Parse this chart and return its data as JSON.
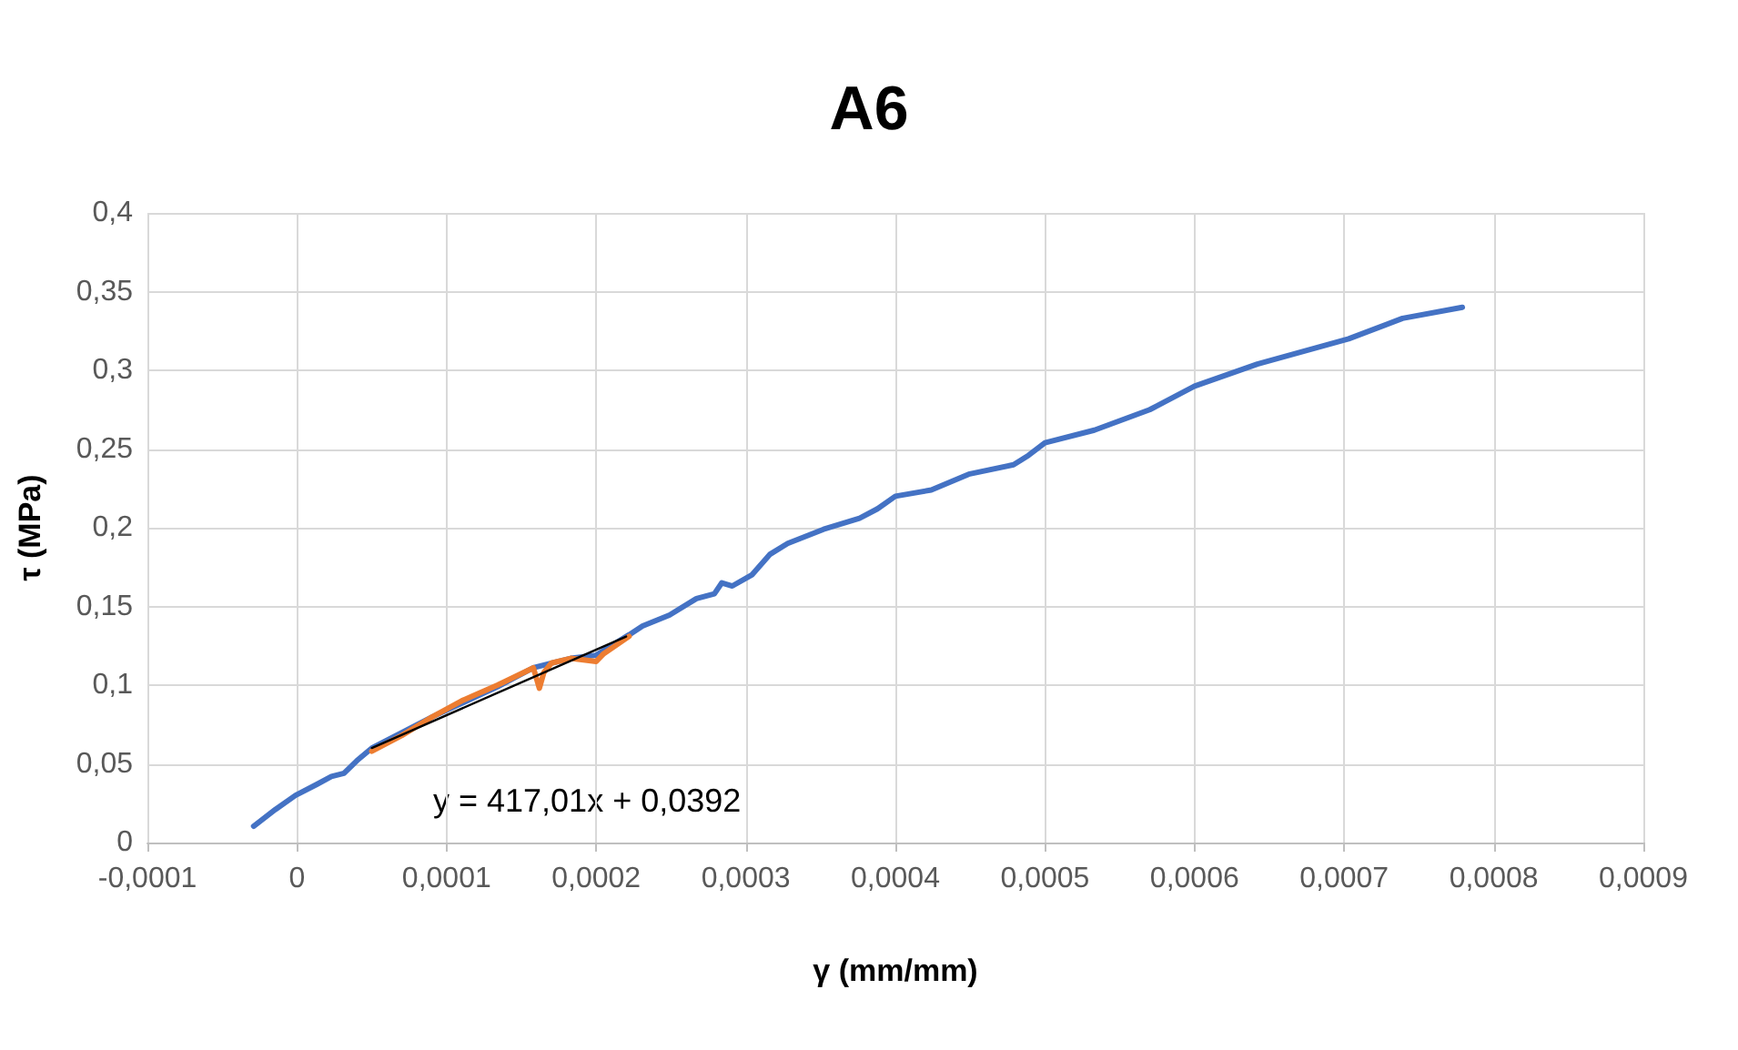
{
  "chart_data": {
    "type": "line",
    "title": "A6",
    "xlabel": "γ (mm/mm)",
    "ylabel": "τ (MPa)",
    "xlim": [
      -0.0001,
      0.0009
    ],
    "xticks": [
      {
        "value": -0.0001,
        "label": "-0,0001"
      },
      0,
      {
        "value": 0.0001,
        "label": "0,0001"
      },
      {
        "value": 0.0002,
        "label": "0,0002"
      },
      {
        "value": 0.0003,
        "label": "0,0003"
      },
      {
        "value": 0.0004,
        "label": "0,0004"
      },
      {
        "value": 0.0005,
        "label": "0,0005"
      },
      {
        "value": 0.0006,
        "label": "0,0006"
      },
      {
        "value": 0.0007,
        "label": "0,0007"
      },
      {
        "value": 0.0008,
        "label": "0,0008"
      },
      {
        "value": 0.0009,
        "label": "0,0009"
      }
    ],
    "ylim": [
      0,
      0.4
    ],
    "yticks": [
      0,
      {
        "value": 0.05,
        "label": "0,05"
      },
      {
        "value": 0.1,
        "label": "0,1"
      },
      {
        "value": 0.15,
        "label": "0,15"
      },
      {
        "value": 0.2,
        "label": "0,2"
      },
      {
        "value": 0.25,
        "label": "0,25"
      },
      {
        "value": 0.3,
        "label": "0,3"
      },
      {
        "value": 0.35,
        "label": "0,35"
      },
      {
        "value": 0.4,
        "label": "0,4"
      }
    ],
    "grid": true,
    "marker": "none",
    "line_style": "solid",
    "annotations": [
      "y = 417,01x + 0,0392"
    ],
    "series": [
      {
        "color": "#4472c4",
        "x": [
          -2.9e-05,
          -1.45e-05,
          -1e-06,
          1.33e-05,
          2.3e-05,
          3.14e-05,
          4e-05,
          5e-05,
          9.07e-05,
          0.000134,
          0.000158,
          0.00017,
          0.000183,
          0.0002,
          0.000222,
          0.000231,
          0.000249,
          0.000267,
          0.000279,
          0.000284,
          0.000291,
          0.000304,
          0.000316,
          0.000328,
          0.000352,
          0.000376,
          0.000388,
          0.0004,
          0.000424,
          0.000449,
          0.000479,
          0.000489,
          0.0005,
          0.000533,
          0.00057,
          0.0006,
          0.000642,
          0.000703,
          0.000739,
          0.000779
        ],
        "values": [
          0.0104,
          0.021,
          0.03,
          0.037,
          0.042,
          0.044,
          0.052,
          0.06,
          0.08,
          0.099,
          0.111,
          0.114,
          0.117,
          0.119,
          0.132,
          0.1376,
          0.1445,
          0.155,
          0.158,
          0.165,
          0.163,
          0.17,
          0.183,
          0.19,
          0.199,
          0.206,
          0.212,
          0.22,
          0.224,
          0.234,
          0.24,
          0.246,
          0.254,
          0.262,
          0.275,
          0.29,
          0.304,
          0.32,
          0.333,
          0.34
        ]
      },
      {
        "color": "#ed7d31",
        "x": [
          5e-05,
          7e-05,
          9.07e-05,
          0.00011,
          0.000134,
          0.000158,
          0.000162,
          0.000165,
          0.00017,
          0.000183,
          0.0002,
          0.000205,
          0.000222
        ],
        "values": [
          0.058,
          0.068,
          0.08,
          0.09,
          0.1,
          0.111,
          0.098,
          0.108,
          0.114,
          0.117,
          0.115,
          0.12,
          0.131
        ]
      },
      {
        "color": "#000000",
        "x": [
          5e-05,
          0.00022
        ],
        "values": [
          0.0601,
          0.1309
        ]
      }
    ]
  }
}
